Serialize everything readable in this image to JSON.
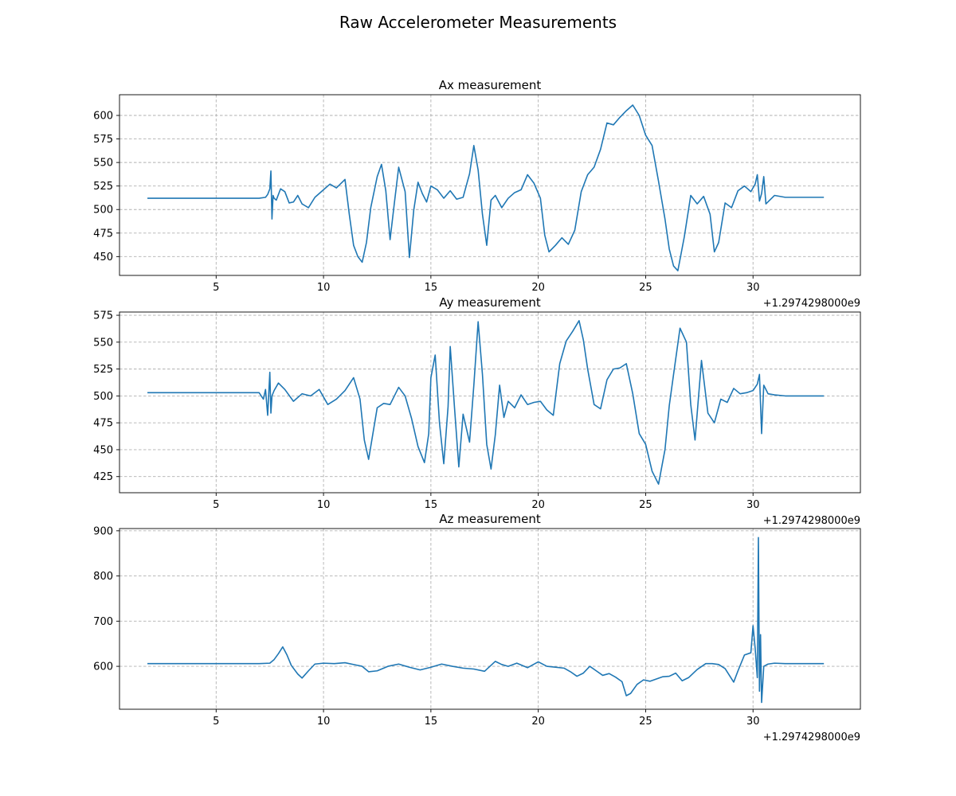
{
  "figure": {
    "title": "Raw Accelerometer Measurements"
  },
  "chart_data": [
    {
      "type": "line",
      "title": "Ax measurement",
      "xlabel": "",
      "ylabel": "",
      "x_offset_label": "+1.2974298000e9",
      "xlim": [
        0.5,
        35.0
      ],
      "ylim": [
        430,
        622
      ],
      "xticks": [
        5,
        10,
        15,
        20,
        25,
        30
      ],
      "xtick_labels": [
        "5",
        "10",
        "15",
        "20",
        "25",
        "30"
      ],
      "yticks": [
        450,
        475,
        500,
        525,
        550,
        575,
        600
      ],
      "ytick_labels": [
        "450",
        "475",
        "500",
        "525",
        "550",
        "575",
        "600"
      ],
      "grid": true,
      "color": "#1f77b4",
      "series": [
        {
          "x": [
            1.8,
            7.0,
            7.3,
            7.4,
            7.5,
            7.55,
            7.6,
            7.65,
            7.7,
            7.8,
            8.0,
            8.2,
            8.4,
            8.6,
            8.8,
            9.0,
            9.3,
            9.6,
            10.0,
            10.3,
            10.6,
            11.0,
            11.2,
            11.4,
            11.6,
            11.8,
            12.0,
            12.2,
            12.5,
            12.7,
            12.9,
            13.1,
            13.3,
            13.5,
            13.8,
            14.0,
            14.2,
            14.4,
            14.6,
            14.8,
            15.0,
            15.3,
            15.6,
            15.9,
            16.2,
            16.5,
            16.8,
            17.0,
            17.2,
            17.4,
            17.6,
            17.8,
            18.0,
            18.3,
            18.6,
            18.9,
            19.2,
            19.5,
            19.8,
            20.1,
            20.3,
            20.5,
            20.8,
            21.1,
            21.4,
            21.7,
            22.0,
            22.3,
            22.6,
            22.9,
            23.2,
            23.5,
            23.8,
            24.1,
            24.4,
            24.7,
            25.0,
            25.3,
            25.6,
            25.9,
            26.1,
            26.3,
            26.5,
            26.8,
            27.1,
            27.4,
            27.7,
            28.0,
            28.2,
            28.4,
            28.7,
            29.0,
            29.3,
            29.6,
            29.9,
            30.1,
            30.2,
            30.3,
            30.4,
            30.5,
            30.6,
            31.0,
            31.5,
            32.5,
            33.3
          ],
          "y": [
            512,
            512,
            513,
            516,
            522,
            541,
            490,
            515,
            512,
            510,
            522,
            519,
            507,
            508,
            515,
            506,
            502,
            513,
            521,
            527,
            523,
            532,
            495,
            462,
            450,
            444,
            465,
            502,
            535,
            548,
            520,
            468,
            507,
            545,
            519,
            449,
            499,
            529,
            517,
            508,
            525,
            521,
            512,
            520,
            511,
            513,
            538,
            568,
            542,
            495,
            462,
            510,
            515,
            502,
            512,
            518,
            521,
            537,
            528,
            512,
            473,
            455,
            462,
            470,
            463,
            478,
            519,
            537,
            545,
            564,
            592,
            590,
            598,
            605,
            611,
            600,
            579,
            568,
            530,
            490,
            458,
            440,
            435,
            471,
            515,
            506,
            514,
            495,
            455,
            465,
            507,
            502,
            520,
            525,
            519,
            527,
            537,
            509,
            517,
            535,
            506,
            515,
            513,
            513,
            513
          ]
        }
      ]
    },
    {
      "type": "line",
      "title": "Ay measurement",
      "xlabel": "",
      "ylabel": "",
      "x_offset_label": "+1.2974298000e9",
      "xlim": [
        0.5,
        35.0
      ],
      "ylim": [
        410,
        578
      ],
      "xticks": [
        5,
        10,
        15,
        20,
        25,
        30
      ],
      "xtick_labels": [
        "5",
        "10",
        "15",
        "20",
        "25",
        "30"
      ],
      "yticks": [
        425,
        450,
        475,
        500,
        525,
        550,
        575
      ],
      "ytick_labels": [
        "425",
        "450",
        "475",
        "500",
        "525",
        "550",
        "575"
      ],
      "grid": true,
      "color": "#1f77b4",
      "series": [
        {
          "x": [
            1.8,
            7.0,
            7.2,
            7.3,
            7.4,
            7.5,
            7.55,
            7.6,
            7.7,
            7.9,
            8.2,
            8.6,
            9.0,
            9.4,
            9.8,
            10.2,
            10.6,
            11.0,
            11.4,
            11.7,
            11.9,
            12.1,
            12.3,
            12.5,
            12.8,
            13.1,
            13.5,
            13.8,
            14.1,
            14.4,
            14.7,
            14.9,
            15.0,
            15.2,
            15.4,
            15.6,
            15.8,
            15.9,
            16.1,
            16.3,
            16.5,
            16.8,
            17.0,
            17.2,
            17.4,
            17.6,
            17.8,
            18.0,
            18.2,
            18.4,
            18.6,
            18.9,
            19.2,
            19.5,
            19.8,
            20.1,
            20.4,
            20.7,
            21.0,
            21.3,
            21.6,
            21.9,
            22.1,
            22.3,
            22.6,
            22.9,
            23.2,
            23.5,
            23.8,
            24.1,
            24.4,
            24.7,
            25.0,
            25.3,
            25.6,
            25.9,
            26.1,
            26.3,
            26.6,
            26.9,
            27.1,
            27.3,
            27.6,
            27.9,
            28.2,
            28.5,
            28.8,
            29.1,
            29.4,
            29.7,
            30.0,
            30.2,
            30.3,
            30.4,
            30.5,
            30.7,
            31.0,
            31.5,
            32.5,
            33.3
          ],
          "y": [
            503,
            503,
            497,
            506,
            482,
            522,
            484,
            500,
            505,
            512,
            506,
            495,
            502,
            500,
            506,
            492,
            497,
            505,
            517,
            497,
            459,
            441,
            465,
            489,
            493,
            492,
            508,
            500,
            479,
            453,
            438,
            465,
            517,
            538,
            475,
            437,
            490,
            546,
            489,
            434,
            483,
            457,
            510,
            569,
            520,
            455,
            432,
            464,
            510,
            480,
            495,
            489,
            501,
            492,
            494,
            495,
            487,
            482,
            530,
            551,
            560,
            570,
            552,
            525,
            492,
            488,
            515,
            525,
            526,
            530,
            502,
            465,
            455,
            430,
            418,
            450,
            491,
            520,
            563,
            550,
            492,
            459,
            533,
            484,
            475,
            497,
            494,
            507,
            502,
            503,
            505,
            511,
            520,
            465,
            510,
            502,
            501,
            500,
            500,
            500
          ]
        }
      ]
    },
    {
      "type": "line",
      "title": "Az measurement",
      "xlabel": "",
      "ylabel": "",
      "x_offset_label": "+1.2974298000e9",
      "xlim": [
        0.5,
        35.0
      ],
      "ylim": [
        505,
        905
      ],
      "xticks": [
        5,
        10,
        15,
        20,
        25,
        30
      ],
      "xtick_labels": [
        "5",
        "10",
        "15",
        "20",
        "25",
        "30"
      ],
      "yticks": [
        600,
        700,
        800,
        900
      ],
      "ytick_labels": [
        "600",
        "700",
        "800",
        "900"
      ],
      "grid": true,
      "color": "#1f77b4",
      "series": [
        {
          "x": [
            1.8,
            7.0,
            7.5,
            7.7,
            7.9,
            8.1,
            8.3,
            8.5,
            8.8,
            9.0,
            9.3,
            9.6,
            10.0,
            10.5,
            11.0,
            11.5,
            11.8,
            12.1,
            12.5,
            13.0,
            13.5,
            14.0,
            14.5,
            15.0,
            15.5,
            16.0,
            16.5,
            17.0,
            17.5,
            18.0,
            18.3,
            18.6,
            19.0,
            19.5,
            20.0,
            20.4,
            20.8,
            21.2,
            21.5,
            21.8,
            22.1,
            22.4,
            22.7,
            23.0,
            23.3,
            23.6,
            23.9,
            24.1,
            24.3,
            24.6,
            24.9,
            25.2,
            25.5,
            25.8,
            26.1,
            26.4,
            26.7,
            27.0,
            27.4,
            27.8,
            28.1,
            28.4,
            28.7,
            28.9,
            29.1,
            29.3,
            29.6,
            29.9,
            30.0,
            30.1,
            30.2,
            30.25,
            30.3,
            30.35,
            30.4,
            30.5,
            30.7,
            31.0,
            31.5,
            32.5,
            33.3
          ],
          "y": [
            606,
            606,
            607,
            615,
            628,
            643,
            625,
            602,
            583,
            574,
            590,
            605,
            607,
            606,
            608,
            603,
            600,
            588,
            590,
            600,
            605,
            598,
            592,
            598,
            605,
            600,
            596,
            594,
            589,
            611,
            604,
            600,
            607,
            597,
            610,
            600,
            598,
            596,
            588,
            578,
            585,
            600,
            590,
            580,
            584,
            576,
            566,
            535,
            540,
            560,
            570,
            567,
            572,
            577,
            578,
            585,
            568,
            575,
            593,
            606,
            606,
            604,
            595,
            580,
            565,
            590,
            625,
            630,
            690,
            640,
            575,
            885,
            545,
            670,
            520,
            600,
            605,
            607,
            606,
            606,
            606
          ]
        }
      ]
    }
  ]
}
